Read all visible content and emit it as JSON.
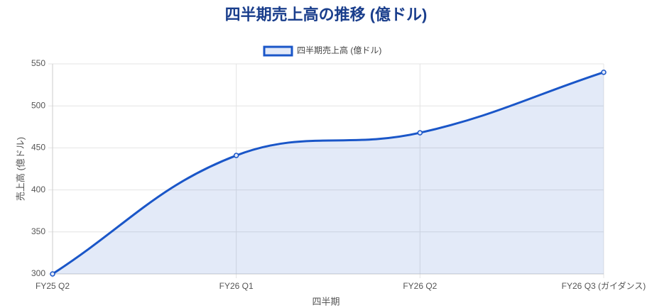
{
  "chart_data": {
    "type": "line",
    "title": "四半期売上高の推移 (億ドル)",
    "x_label": "四半期",
    "y_label": "売上高 (億ドル)",
    "categories": [
      "FY25 Q2",
      "FY26 Q1",
      "FY26 Q2",
      "FY26 Q3 (ガイダンス)"
    ],
    "series": [
      {
        "name": "四半期売上高 (億ドル)",
        "color": "#1a56c8",
        "values": [
          300,
          441,
          468,
          540
        ]
      }
    ],
    "ylim": [
      300,
      550
    ],
    "yticks": [
      300,
      350,
      400,
      450,
      500,
      550
    ],
    "grid": true,
    "fill": true
  }
}
